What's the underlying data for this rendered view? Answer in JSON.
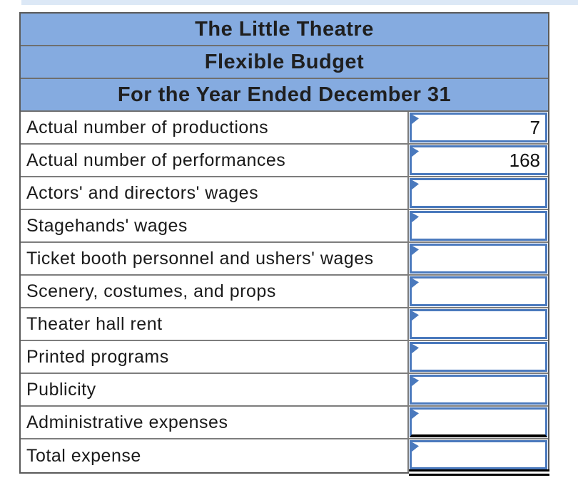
{
  "page": {
    "top_strip_color": "#dce8f6",
    "background_color": "#ffffff"
  },
  "colors": {
    "header_fill": "#85abe0",
    "input_border_blue": "#4a79bd",
    "grid_border_gray": "#7d7d7d",
    "outer_border_gray": "#5a5a5a",
    "accounting_rule_black": "#000000",
    "text_black": "#1a1a1a"
  },
  "table": {
    "title_rows": [
      "The Little Theatre",
      "Flexible Budget",
      "For the Year Ended December 31"
    ],
    "rows": [
      {
        "label": "Actual number of productions",
        "value": "7"
      },
      {
        "label": "Actual number of performances",
        "value": "168"
      },
      {
        "label": "Actors' and directors' wages",
        "value": ""
      },
      {
        "label": "Stagehands' wages",
        "value": ""
      },
      {
        "label": "Ticket booth personnel and ushers' wages",
        "value": ""
      },
      {
        "label": "Scenery, costumes, and props",
        "value": ""
      },
      {
        "label": "Theater hall rent",
        "value": ""
      },
      {
        "label": "Printed programs",
        "value": ""
      },
      {
        "label": "Publicity",
        "value": ""
      },
      {
        "label": "Administrative expenses",
        "value": ""
      },
      {
        "label": "Total expense",
        "value": ""
      }
    ]
  }
}
